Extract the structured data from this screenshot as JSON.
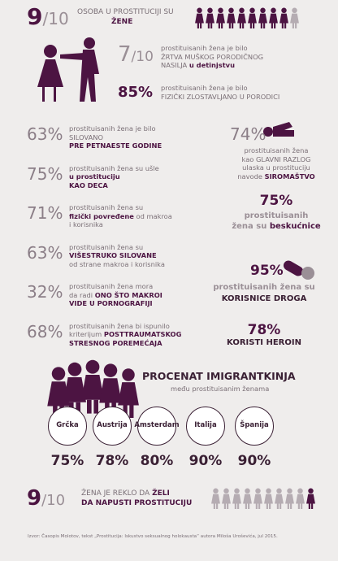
{
  "header": {
    "big_a": "9",
    "big_b": "/10",
    "line1": "OSOBA U PROSTITUCIJI SU",
    "line2": "ŽENE"
  },
  "violence": {
    "frac_a": "7",
    "frac_b": "/10",
    "text1": "prostituisanih žena je bilo",
    "text2": "ŽRTVA MUŠKOG PORODIČNOG",
    "text3a": "NASILJA",
    "text3b": "u detinjstvu",
    "pct": "85%",
    "pct_text1": "prostituisanih žena je bilo",
    "pct_text2": "FIZIČKI ZLOSTAVLJANO U PORODICI"
  },
  "left_stats": [
    {
      "value": "63%",
      "l1": "prostituisanih žena je bilo",
      "l2": "SILOVANO",
      "l3": "PRE PETNAESTE GODINE"
    },
    {
      "value": "75%",
      "l1": "prostituisanih žena su ušle",
      "l2": "u prostituciju",
      "l3": "KAO DECA"
    },
    {
      "value": "71%",
      "l1": "prostituisanih žena su",
      "l2a": "fizički povređene",
      "l2b": "od makroa",
      "l3": "i korisnika"
    },
    {
      "value": "63%",
      "l1": "prostituisanih žena su",
      "l2": "VIŠESTRUKO SILOVANE",
      "l3": "od strane makroa i korisnika"
    },
    {
      "value": "32%",
      "l1": "prostituisanih žena mora",
      "l2a": "da radi",
      "l2b": "ONO ŠTO MAKROI",
      "l3": "VIDE U PORNOGRAFIJI"
    },
    {
      "value": "68%",
      "l1": "prostituisanih žena bi ispunilo",
      "l2a": "kriterijum",
      "l2b": "POSTTRAUMATSKOG",
      "l3": "STRESNOG POREMEĆAJA"
    }
  ],
  "right_stats": {
    "poverty": {
      "value": "74%",
      "l1": "prostituisanih žena",
      "l2": "kao GLAVNI RAZLOG",
      "l3": "ulaska u prostituciju",
      "l4a": "navode",
      "l4b": "SIROMAŠTVO"
    },
    "homeless": {
      "value": "75%",
      "l1": "prostituisanih",
      "l2a": "žena su",
      "l2b": "beskućnice"
    },
    "drugs": {
      "value": "95%",
      "l1": "prostituisanih žena su",
      "l2": "KORISNICE DROGA"
    },
    "heroin": {
      "value": "78%",
      "l1": "KORISTI HEROIN"
    }
  },
  "immigrants": {
    "title": "PROCENAT IMIGRANTKINJA",
    "subtitle": "među prostituisanim ženama",
    "places": [
      "Grčka",
      "Austrija",
      "Amsterdam",
      "Italija",
      "Španija"
    ],
    "values": [
      "75%",
      "78%",
      "80%",
      "90%",
      "90%"
    ]
  },
  "footer": {
    "big_a": "9",
    "big_b": "/10",
    "l1a": "ŽENA JE REKLO DA",
    "l1b": "ŽELI",
    "l2": "DA NAPUSTI PROSTITUCIJU"
  },
  "source": "Izvor: Časopis Molotov, tekst „Prostitucija: Iskustvo seksualnog holokausta“ autora Miloša Uroševića, jul 2015."
}
